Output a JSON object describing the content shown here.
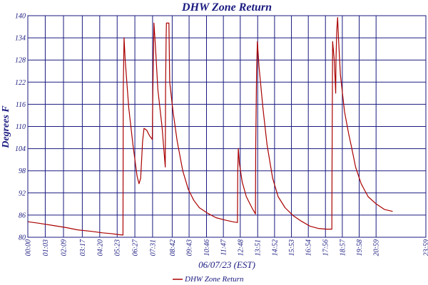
{
  "colors": {
    "grid": "#1a1a80",
    "text": "#1a1a80",
    "series": "#aa0000",
    "background": "#ffffff"
  },
  "chart_data": {
    "type": "line",
    "title": "DHW Zone Return",
    "xlabel": "06/07/23 (EST)",
    "ylabel": "Degrees F",
    "ylim": [
      80,
      140
    ],
    "y_ticks": [
      "80",
      "86",
      "92",
      "98",
      "104",
      "110",
      "116",
      "122",
      "128",
      "134",
      "140"
    ],
    "xlim": [
      "00:00",
      "23:59"
    ],
    "x_ticks": [
      "00:00",
      "01:03",
      "02:09",
      "03:17",
      "04:20",
      "05:23",
      "06:27",
      "07:31",
      "08:42",
      "09:43",
      "10:46",
      "11:47",
      "12:48",
      "13:51",
      "14:52",
      "15:53",
      "16:54",
      "17:56",
      "18:57",
      "19:58",
      "20:59",
      "23:59"
    ],
    "grid": true,
    "legend": "bottom-center",
    "series": [
      {
        "name": "DHW Zone Return",
        "color": "#aa0000",
        "points": [
          [
            "00:00",
            84.2
          ],
          [
            "00:40",
            83.8
          ],
          [
            "01:30",
            83.2
          ],
          [
            "02:20",
            82.6
          ],
          [
            "03:00",
            82.0
          ],
          [
            "03:50",
            81.6
          ],
          [
            "04:30",
            81.2
          ],
          [
            "05:00",
            81.0
          ],
          [
            "05:30",
            80.7
          ],
          [
            "05:44",
            80.6
          ],
          [
            "05:45",
            120.0
          ],
          [
            "05:48",
            134.0
          ],
          [
            "05:52",
            128.0
          ],
          [
            "06:05",
            115.0
          ],
          [
            "06:20",
            105.0
          ],
          [
            "06:35",
            96.5
          ],
          [
            "06:42",
            94.5
          ],
          [
            "06:48",
            96.0
          ],
          [
            "06:55",
            106.0
          ],
          [
            "07:00",
            109.5
          ],
          [
            "07:10",
            109.0
          ],
          [
            "07:20",
            107.5
          ],
          [
            "07:30",
            106.5
          ],
          [
            "07:32",
            120.0
          ],
          [
            "07:36",
            138.0
          ],
          [
            "07:41",
            132.0
          ],
          [
            "07:50",
            120.0
          ],
          [
            "08:05",
            110.0
          ],
          [
            "08:17",
            99.0
          ],
          [
            "08:18",
            120.0
          ],
          [
            "08:20",
            134.0
          ],
          [
            "08:21",
            138.0
          ],
          [
            "08:30",
            138.0
          ],
          [
            "08:33",
            122.0
          ],
          [
            "08:45",
            114.0
          ],
          [
            "09:00",
            106.0
          ],
          [
            "09:20",
            98.0
          ],
          [
            "09:40",
            93.0
          ],
          [
            "10:00",
            90.0
          ],
          [
            "10:20",
            88.0
          ],
          [
            "10:50",
            86.5
          ],
          [
            "11:20",
            85.3
          ],
          [
            "11:50",
            84.7
          ],
          [
            "12:20",
            84.2
          ],
          [
            "12:38",
            84.0
          ],
          [
            "12:39",
            98.0
          ],
          [
            "12:41",
            104.0
          ],
          [
            "12:45",
            100.0
          ],
          [
            "12:55",
            95.0
          ],
          [
            "13:10",
            91.0
          ],
          [
            "13:30",
            88.0
          ],
          [
            "13:43",
            86.3
          ],
          [
            "13:44",
            105.0
          ],
          [
            "13:47",
            125.0
          ],
          [
            "13:50",
            133.0
          ],
          [
            "13:56",
            126.0
          ],
          [
            "14:10",
            115.0
          ],
          [
            "14:25",
            105.0
          ],
          [
            "14:45",
            96.0
          ],
          [
            "15:05",
            91.0
          ],
          [
            "15:30",
            88.0
          ],
          [
            "16:00",
            85.8
          ],
          [
            "16:30",
            84.3
          ],
          [
            "17:00",
            83.0
          ],
          [
            "17:30",
            82.4
          ],
          [
            "18:00",
            82.2
          ],
          [
            "18:19",
            82.2
          ],
          [
            "18:20",
            100.0
          ],
          [
            "18:22",
            133.0
          ],
          [
            "18:28",
            128.0
          ],
          [
            "18:33",
            119.0
          ],
          [
            "18:34",
            128.0
          ],
          [
            "18:37",
            136.0
          ],
          [
            "18:40",
            139.5
          ],
          [
            "18:43",
            134.0
          ],
          [
            "18:50",
            124.0
          ],
          [
            "19:05",
            114.0
          ],
          [
            "19:20",
            108.0
          ],
          [
            "19:30",
            104.5
          ],
          [
            "19:45",
            99.0
          ],
          [
            "20:05",
            94.5
          ],
          [
            "20:30",
            91.0
          ],
          [
            "21:00",
            89.0
          ],
          [
            "21:30",
            87.5
          ],
          [
            "21:59",
            87.0
          ]
        ]
      }
    ]
  }
}
